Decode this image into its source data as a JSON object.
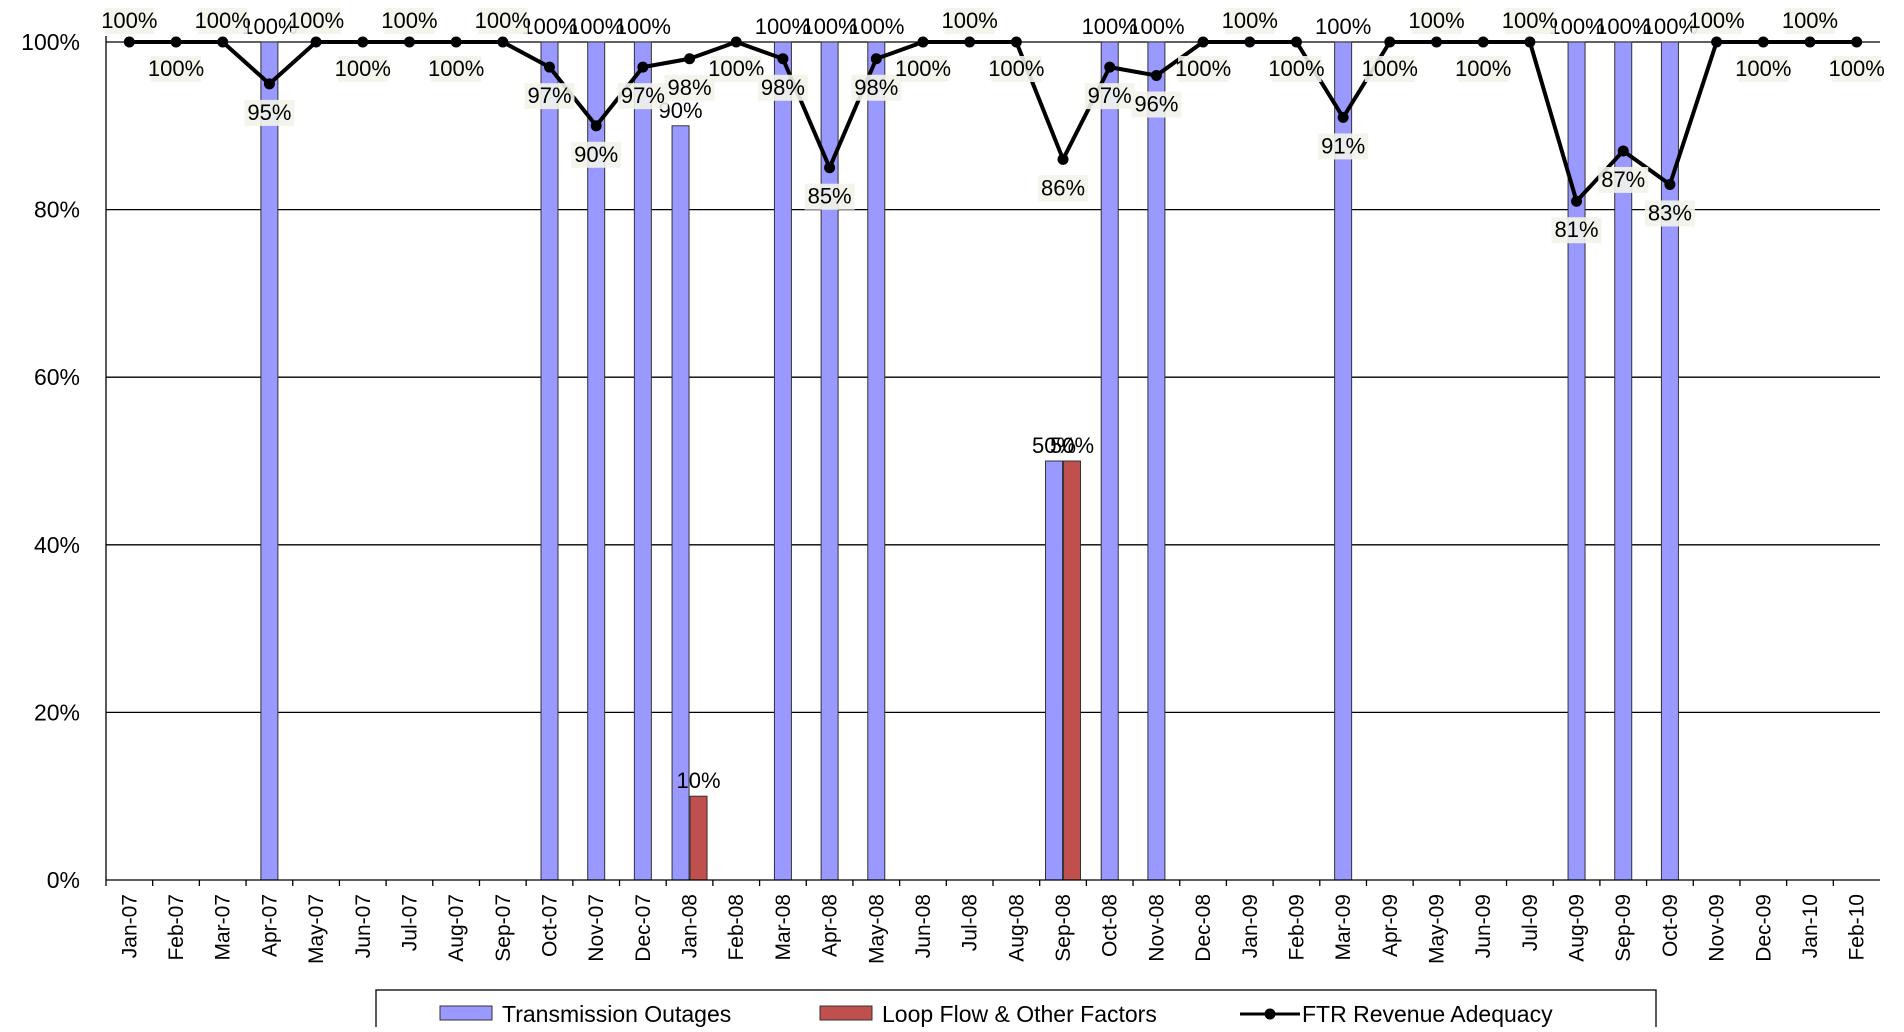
{
  "chart_data": {
    "type": "bar",
    "title": "",
    "xlabel": "",
    "ylabel": "",
    "ylim": [
      0,
      100
    ],
    "yticks": [
      "0%",
      "20%",
      "40%",
      "60%",
      "80%",
      "100%"
    ],
    "grid": true,
    "legend_position": "bottom",
    "categories": [
      "Jan-07",
      "Feb-07",
      "Mar-07",
      "Apr-07",
      "May-07",
      "Jun-07",
      "Jul-07",
      "Aug-07",
      "Sep-07",
      "Oct-07",
      "Nov-07",
      "Dec-07",
      "Jan-08",
      "Feb-08",
      "Mar-08",
      "Apr-08",
      "May-08",
      "Jun-08",
      "Jul-08",
      "Aug-08",
      "Sep-08",
      "Oct-08",
      "Nov-08",
      "Dec-08",
      "Jan-09",
      "Feb-09",
      "Mar-09",
      "Apr-09",
      "May-09",
      "Jun-09",
      "Jul-09",
      "Aug-09",
      "Sep-09",
      "Oct-09",
      "Nov-09",
      "Dec-09",
      "Jan-10",
      "Feb-10"
    ],
    "series": [
      {
        "name": "Transmission Outages",
        "kind": "bar",
        "color": "#9999ff",
        "values": [
          null,
          null,
          null,
          100,
          null,
          null,
          null,
          null,
          null,
          100,
          100,
          100,
          90,
          null,
          100,
          100,
          100,
          null,
          null,
          null,
          50,
          100,
          100,
          null,
          null,
          null,
          100,
          null,
          null,
          null,
          null,
          100,
          100,
          100,
          null,
          null,
          null,
          null
        ],
        "labels": [
          "",
          "",
          "",
          "100%",
          "",
          "",
          "",
          "",
          "",
          "100%",
          "100%",
          "100%",
          "90%",
          "",
          "100%",
          "100%",
          "100%",
          "",
          "",
          "",
          "50%",
          "100%",
          "100%",
          "",
          "",
          "",
          "100%",
          "",
          "",
          "",
          "",
          "100%",
          "100%",
          "100%",
          "",
          "",
          "",
          ""
        ]
      },
      {
        "name": "Loop Flow & Other Factors",
        "kind": "bar",
        "color": "#c0504d",
        "values": [
          null,
          null,
          null,
          null,
          null,
          null,
          null,
          null,
          null,
          null,
          null,
          null,
          10,
          null,
          null,
          null,
          null,
          null,
          null,
          null,
          50,
          null,
          null,
          null,
          null,
          null,
          null,
          null,
          null,
          null,
          null,
          null,
          null,
          null,
          null,
          null,
          null,
          null
        ],
        "labels": [
          "",
          "",
          "",
          "",
          "",
          "",
          "",
          "",
          "",
          "",
          "",
          "",
          "10%",
          "",
          "",
          "",
          "",
          "",
          "",
          "",
          "50%",
          "",
          "",
          "",
          "",
          "",
          "",
          "",
          "",
          "",
          "",
          "",
          "",
          "",
          "",
          "",
          "",
          ""
        ]
      },
      {
        "name": "FTR Revenue Adequacy",
        "kind": "line",
        "color": "#000000",
        "values": [
          100,
          100,
          100,
          95,
          100,
          100,
          100,
          100,
          100,
          97,
          90,
          97,
          98,
          100,
          98,
          85,
          98,
          100,
          100,
          100,
          86,
          97,
          96,
          100,
          100,
          100,
          91,
          100,
          100,
          100,
          100,
          81,
          87,
          83,
          100,
          100,
          100,
          100
        ],
        "labels": [
          "100%",
          "100%",
          "100%",
          "95%",
          "100%",
          "100%",
          "100%",
          "100%",
          "100%",
          "97%",
          "90%",
          "97%",
          "98%",
          "100%",
          "98%",
          "85%",
          "98%",
          "100%",
          "100%",
          "100%",
          "86%",
          "97%",
          "96%",
          "100%",
          "100%",
          "100%",
          "91%",
          "100%",
          "100%",
          "100%",
          "100%",
          "81%",
          "87%",
          "83%",
          "100%",
          "100%",
          "100%",
          "100%"
        ]
      }
    ]
  }
}
